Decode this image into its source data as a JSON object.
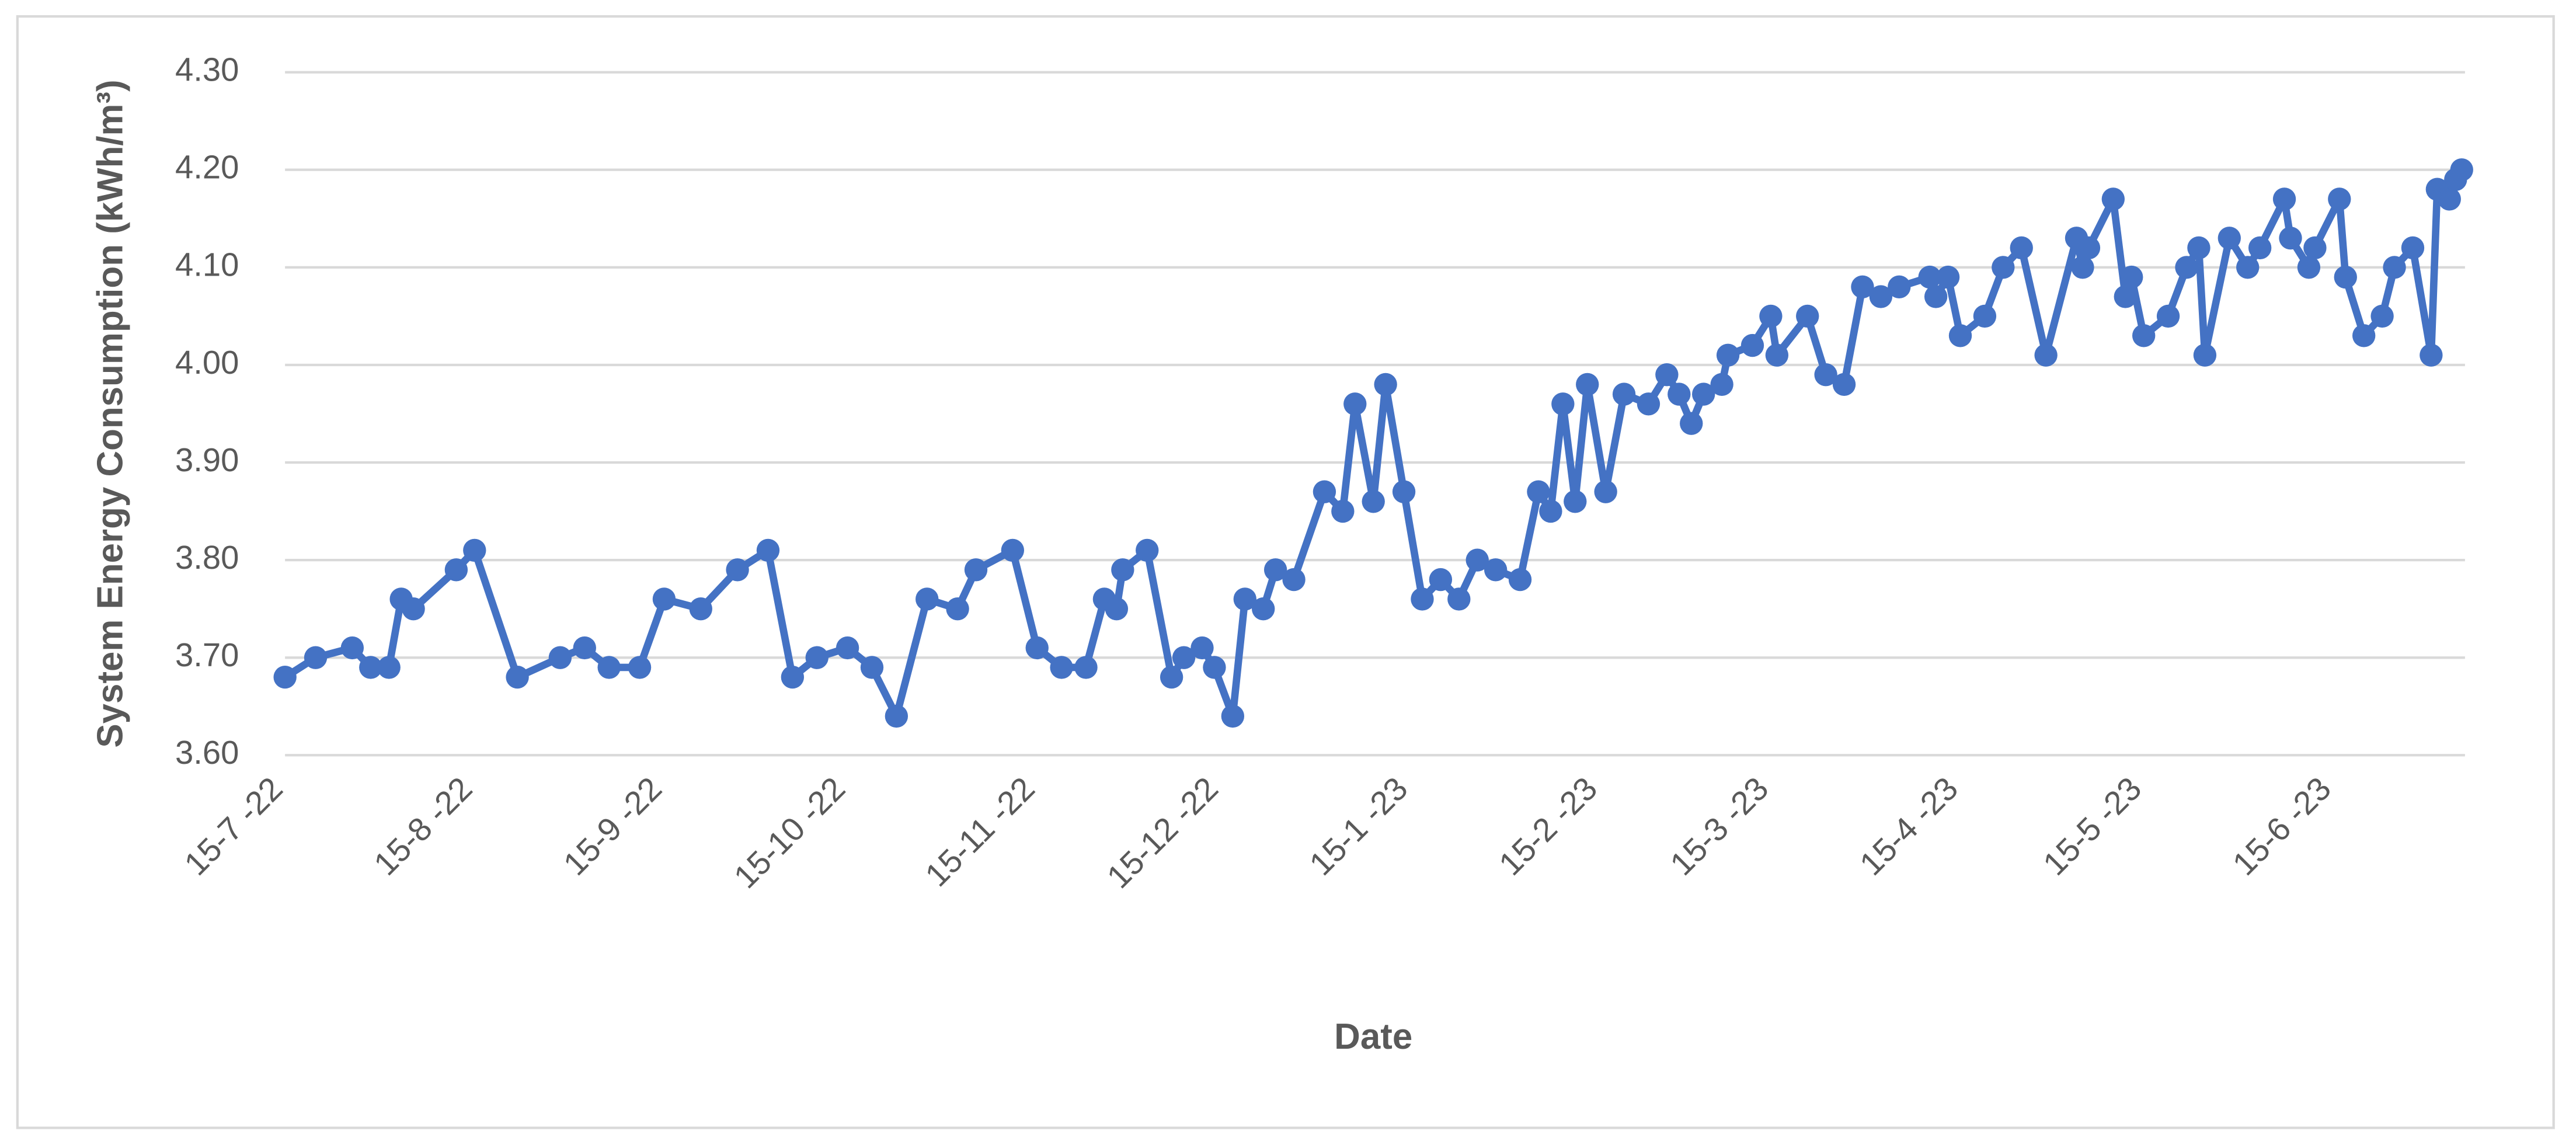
{
  "chart_data": {
    "type": "line",
    "x_label": "Date",
    "y_label": "System Energy Consumption (kWh/m³)",
    "color": "#4472c4",
    "grid": true,
    "markers": true,
    "x": [
      "2022-07-15",
      "2022-07-20",
      "2022-07-26",
      "2022-07-29",
      "2022-08-01",
      "2022-08-03",
      "2022-08-05",
      "2022-08-12",
      "2022-08-15",
      "2022-08-22",
      "2022-08-29",
      "2022-09-02",
      "2022-09-06",
      "2022-09-11",
      "2022-09-15",
      "2022-09-21",
      "2022-09-27",
      "2022-10-02",
      "2022-10-06",
      "2022-10-10",
      "2022-10-15",
      "2022-10-19",
      "2022-10-23",
      "2022-10-28",
      "2022-11-02",
      "2022-11-05",
      "2022-11-11",
      "2022-11-15",
      "2022-11-19",
      "2022-11-23",
      "2022-11-26",
      "2022-11-28",
      "2022-11-29",
      "2022-12-03",
      "2022-12-07",
      "2022-12-09",
      "2022-12-12",
      "2022-12-14",
      "2022-12-17",
      "2022-12-19",
      "2022-12-22",
      "2022-12-24",
      "2022-12-27",
      "2023-01-01",
      "2023-01-04",
      "2023-01-06",
      "2023-01-09",
      "2023-01-11",
      "2023-01-14",
      "2023-01-17",
      "2023-01-20",
      "2023-01-23",
      "2023-01-26",
      "2023-01-29",
      "2023-02-02",
      "2023-02-05",
      "2023-02-07",
      "2023-02-09",
      "2023-02-11",
      "2023-02-13",
      "2023-02-16",
      "2023-02-19",
      "2023-02-23",
      "2023-02-26",
      "2023-02-28",
      "2023-03-02",
      "2023-03-04",
      "2023-03-07",
      "2023-03-08",
      "2023-03-12",
      "2023-03-15",
      "2023-03-16",
      "2023-03-21",
      "2023-03-24",
      "2023-03-27",
      "2023-03-30",
      "2023-04-02",
      "2023-04-05",
      "2023-04-10",
      "2023-04-11",
      "2023-04-13",
      "2023-04-15",
      "2023-04-19",
      "2023-04-22",
      "2023-04-25",
      "2023-04-29",
      "2023-05-04",
      "2023-05-05",
      "2023-05-06",
      "2023-05-10",
      "2023-05-12",
      "2023-05-13",
      "2023-05-15",
      "2023-05-19",
      "2023-05-22",
      "2023-05-24",
      "2023-05-25",
      "2023-05-29",
      "2023-06-01",
      "2023-06-03",
      "2023-06-07",
      "2023-06-08",
      "2023-06-11",
      "2023-06-12",
      "2023-06-16",
      "2023-06-17",
      "2023-06-20",
      "2023-06-23",
      "2023-06-25",
      "2023-06-28",
      "2023-07-01",
      "2023-07-02",
      "2023-07-04",
      "2023-07-05",
      "2023-07-06"
    ],
    "values": [
      3.68,
      3.7,
      3.71,
      3.69,
      3.69,
      3.76,
      3.75,
      3.79,
      3.81,
      3.68,
      3.7,
      3.71,
      3.69,
      3.69,
      3.76,
      3.75,
      3.79,
      3.81,
      3.68,
      3.7,
      3.71,
      3.69,
      3.64,
      3.76,
      3.75,
      3.79,
      3.81,
      3.71,
      3.69,
      3.69,
      3.76,
      3.75,
      3.79,
      3.81,
      3.68,
      3.7,
      3.71,
      3.69,
      3.64,
      3.76,
      3.75,
      3.79,
      3.78,
      3.87,
      3.85,
      3.96,
      3.86,
      3.98,
      3.87,
      3.76,
      3.78,
      3.76,
      3.8,
      3.79,
      3.78,
      3.87,
      3.85,
      3.96,
      3.86,
      3.98,
      3.87,
      3.97,
      3.96,
      3.99,
      3.97,
      3.94,
      3.97,
      3.98,
      4.01,
      4.02,
      4.05,
      4.01,
      4.05,
      3.99,
      3.98,
      4.08,
      4.07,
      4.08,
      4.09,
      4.07,
      4.09,
      4.03,
      4.05,
      4.1,
      4.12,
      4.01,
      4.13,
      4.1,
      4.12,
      4.17,
      4.07,
      4.09,
      4.03,
      4.05,
      4.1,
      4.12,
      4.01,
      4.13,
      4.1,
      4.12,
      4.17,
      4.13,
      4.1,
      4.12,
      4.17,
      4.09,
      4.03,
      4.05,
      4.1,
      4.12,
      4.01,
      4.18,
      4.17,
      4.19,
      4.2
    ],
    "xlim": [
      "2022-07-15",
      "2023-07-06"
    ],
    "xticks": [
      {
        "value": "2022-07-15",
        "label": "15-7 -22"
      },
      {
        "value": "2022-08-15",
        "label": "15-8 -22"
      },
      {
        "value": "2022-09-15",
        "label": "15-9 -22"
      },
      {
        "value": "2022-10-15",
        "label": "15-10 -22"
      },
      {
        "value": "2022-11-15",
        "label": "15-11 -22"
      },
      {
        "value": "2022-12-15",
        "label": "15-12 -22"
      },
      {
        "value": "2023-01-15",
        "label": "15-1 -23"
      },
      {
        "value": "2023-02-15",
        "label": "15-2 -23"
      },
      {
        "value": "2023-03-15",
        "label": "15-3 -23"
      },
      {
        "value": "2023-04-15",
        "label": "15-4 -23"
      },
      {
        "value": "2023-05-15",
        "label": "15-5 -23"
      },
      {
        "value": "2023-06-15",
        "label": "15-6 -23"
      }
    ],
    "ylim": [
      3.6,
      4.3
    ],
    "yticks": [
      {
        "value": 3.6,
        "label": "3.60"
      },
      {
        "value": 3.7,
        "label": "3.70"
      },
      {
        "value": 3.8,
        "label": "3.80"
      },
      {
        "value": 3.9,
        "label": "3.90"
      },
      {
        "value": 4.0,
        "label": "4.00"
      },
      {
        "value": 4.1,
        "label": "4.10"
      },
      {
        "value": 4.2,
        "label": "4.20"
      },
      {
        "value": 4.3,
        "label": "4.30"
      }
    ]
  }
}
